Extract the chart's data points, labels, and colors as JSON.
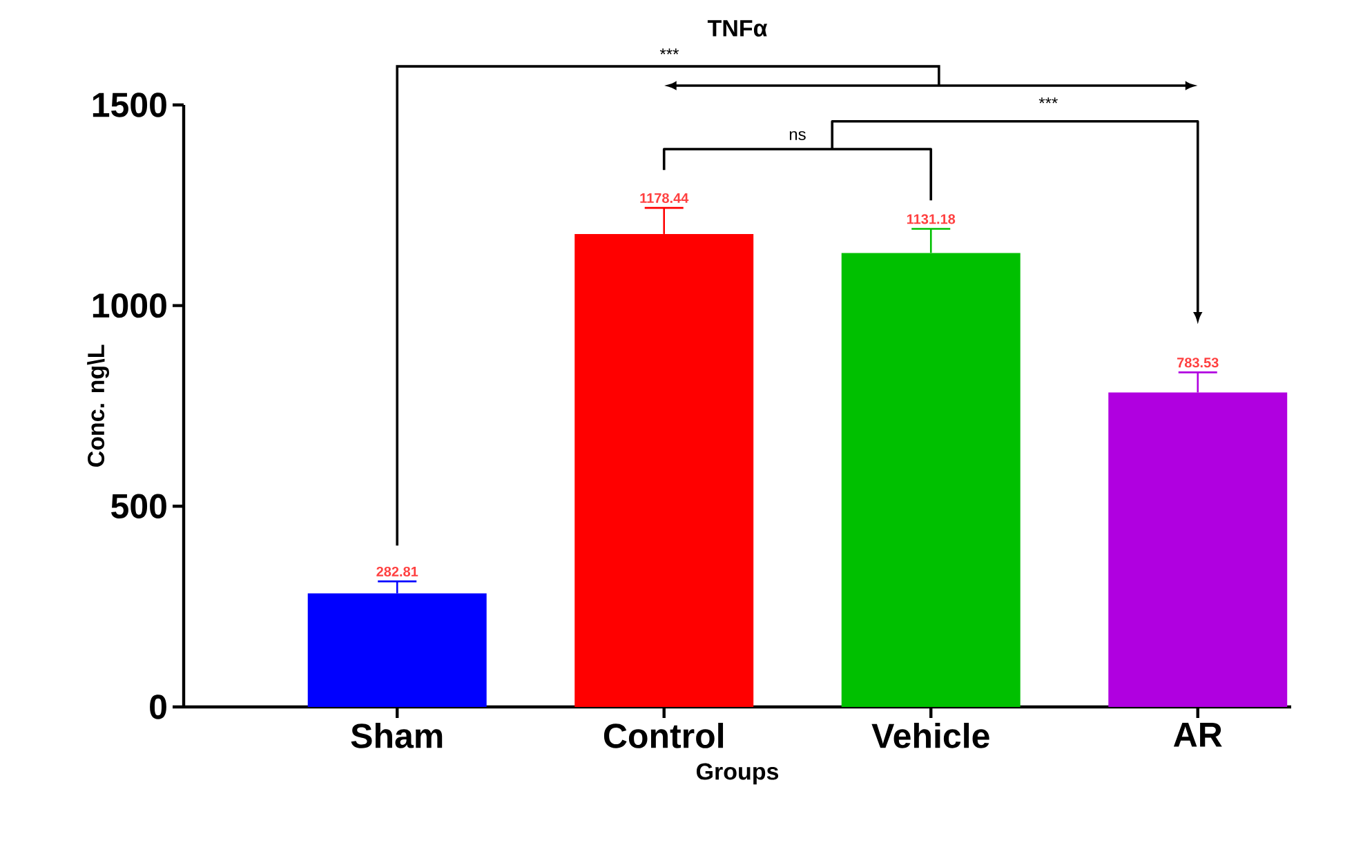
{
  "chart_data": {
    "type": "bar",
    "title": "TNFα",
    "xlabel": "Groups",
    "ylabel": "Conc. ng\\L",
    "categories": [
      "Sham",
      "Control",
      "Vehicle",
      "AR"
    ],
    "values": [
      282.81,
      1178.44,
      1131.18,
      783.53
    ],
    "errors": [
      30,
      65,
      60,
      50
    ],
    "colors": [
      "#0000ff",
      "#ff0000",
      "#00c000",
      "#b000e0"
    ],
    "value_labels": [
      "282.81",
      "1178.44",
      "1131.18",
      "783.53"
    ],
    "ylim": [
      0,
      1500
    ],
    "yticks": [
      0,
      500,
      1000,
      1500
    ],
    "grid": false,
    "annotations": [
      "***",
      "ns",
      "***"
    ]
  }
}
